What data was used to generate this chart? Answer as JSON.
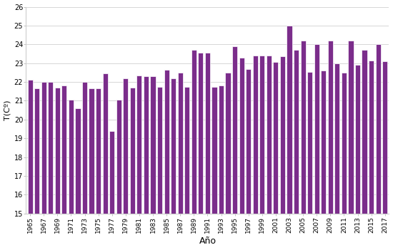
{
  "years": [
    1965,
    1966,
    1967,
    1968,
    1969,
    1970,
    1971,
    1972,
    1973,
    1974,
    1975,
    1976,
    1977,
    1978,
    1979,
    1980,
    1981,
    1982,
    1983,
    1984,
    1985,
    1986,
    1987,
    1988,
    1989,
    1990,
    1991,
    1992,
    1993,
    1994,
    1995,
    1996,
    1997,
    1998,
    1999,
    2000,
    2001,
    2002,
    2003,
    2004,
    2005,
    2006,
    2007,
    2008,
    2009,
    2010,
    2011,
    2012,
    2013,
    2014,
    2015,
    2016,
    2017
  ],
  "values": [
    22.1,
    21.65,
    22.0,
    22.0,
    21.7,
    21.8,
    21.05,
    20.6,
    22.0,
    21.65,
    21.65,
    22.45,
    19.4,
    21.05,
    22.2,
    21.7,
    22.35,
    22.3,
    22.3,
    21.75,
    22.65,
    22.2,
    22.5,
    21.75,
    23.7,
    23.55,
    23.55,
    21.75,
    21.8,
    22.5,
    23.9,
    23.3,
    22.7,
    23.4,
    23.4,
    23.4,
    23.05,
    23.35,
    25.0,
    23.7,
    24.2,
    22.55,
    24.0,
    22.6,
    24.2,
    23.0,
    22.5,
    24.2,
    22.9,
    23.7,
    23.15,
    24.0,
    23.1
  ],
  "bar_color": "#7b2d8b",
  "bar_edgecolor": "white",
  "ylabel": "T(Cº)",
  "xlabel": "Año",
  "ylim": [
    15,
    26
  ],
  "yticks": [
    15,
    16,
    17,
    18,
    19,
    20,
    21,
    22,
    23,
    24,
    25,
    26
  ],
  "xtick_years": [
    1965,
    1967,
    1969,
    1971,
    1973,
    1975,
    1977,
    1979,
    1981,
    1983,
    1985,
    1987,
    1989,
    1991,
    1993,
    1995,
    1997,
    1999,
    2001,
    2003,
    2005,
    2007,
    2009,
    2011,
    2013,
    2015,
    2017
  ],
  "grid_color": "#d0d0d0",
  "background_color": "#ffffff",
  "plot_bg_color": "#ffffff"
}
